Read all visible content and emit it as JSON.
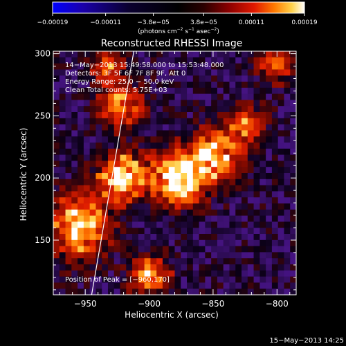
{
  "chart_data": {
    "type": "heatmap",
    "title": "Reconstructed RHESSI Image",
    "xlabel": "Heliocentric X (arcsec)",
    "ylabel": "Heliocentric Y (arcsec)",
    "xlim": [
      -975,
      -785
    ],
    "ylim": [
      106,
      302
    ],
    "xticks": [
      -950,
      -900,
      -850,
      -800
    ],
    "xtick_labels": [
      "−950",
      "−900",
      "−850",
      "−800"
    ],
    "yticks": [
      150,
      200,
      250,
      300
    ],
    "ytick_labels": [
      "150",
      "200",
      "250",
      "300"
    ],
    "colorbar": {
      "range": [
        -0.00019,
        0.00019
      ],
      "ticks": [
        -0.00019,
        -0.00011,
        -3.8e-05,
        3.8e-05,
        0.00011,
        0.00019
      ],
      "tick_labels": [
        "−0.00019",
        "−0.00011",
        "−3.8e−05",
        "3.8e−05",
        "0.00011",
        "0.00019"
      ],
      "units_prefix": "(photons cm",
      "units_sup1": "−2",
      "units_mid": " s",
      "units_sup2": "−1",
      "units_mid2": " asec",
      "units_sup3": "−2",
      "units_suffix": ")",
      "colors": [
        "#0000ff",
        "#1a0099",
        "#0a0030",
        "#000000",
        "#2a0000",
        "#8b0000",
        "#e01800",
        "#ff7a00",
        "#ffd24a",
        "#ffffff"
      ]
    },
    "annotations": [
      "14−May−2013 15:49:58.000 to 15:53:48.000",
      "Detectors: 3F 5F 6F 7F 8F 9F, Att 0",
      "Energy Range: 25.0 − 50.0 keV",
      "Clean    Total counts: 5.75E+03",
      "Position of Peak = [−960,170]"
    ],
    "limb_line": {
      "x": [
        -945,
        -912
      ],
      "y": [
        106,
        302
      ]
    },
    "grid": false,
    "legend": "none"
  },
  "footer": {
    "timestamp": "15−May−2013 14:25"
  }
}
